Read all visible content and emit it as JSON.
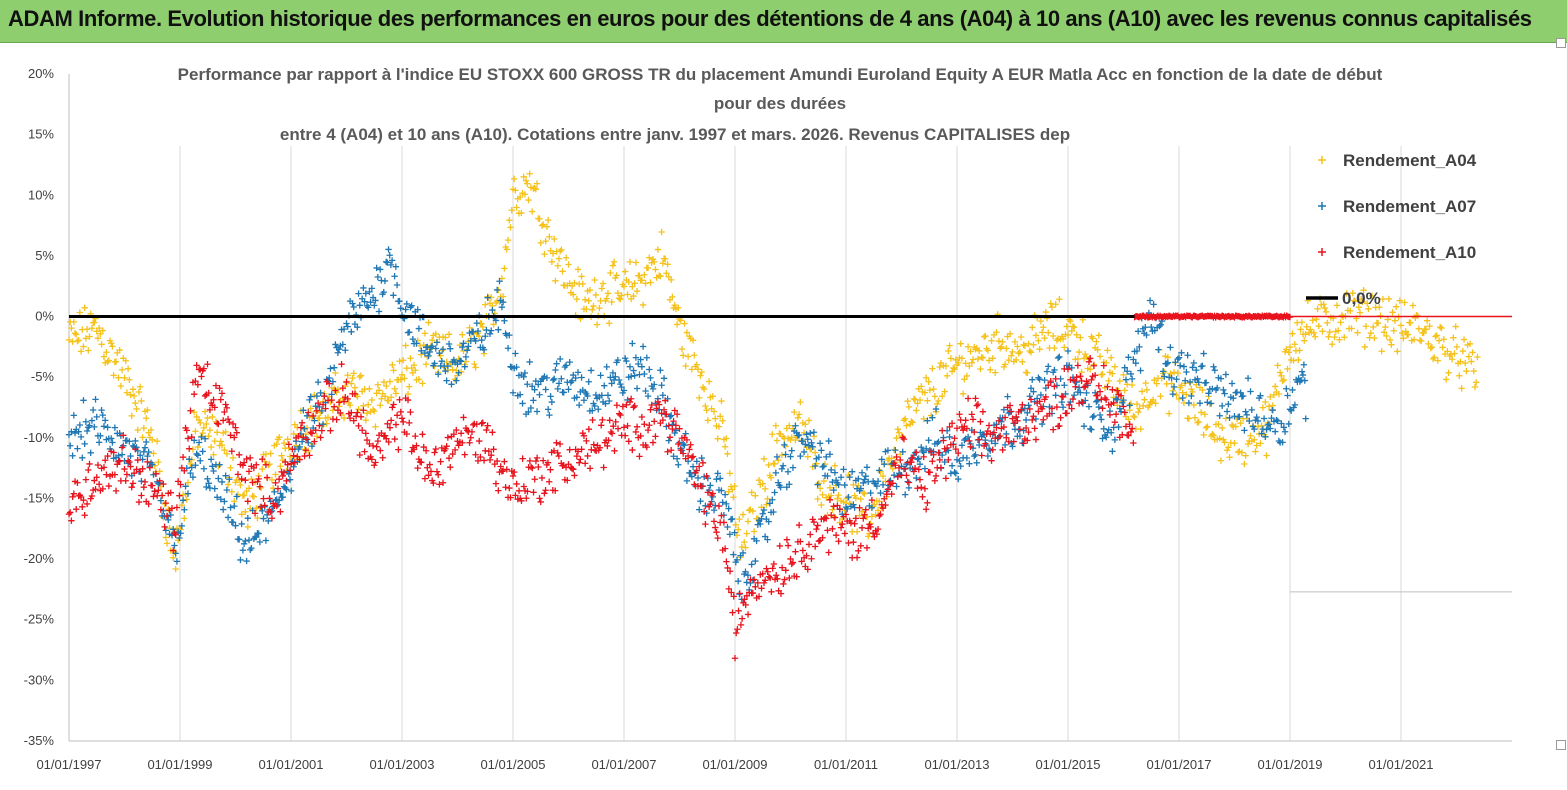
{
  "banner": {
    "title": "ADAM Informe. Evolution historique des performances en euros pour des détentions de 4 ans (A04) à 10 ans (A10) avec les revenus connus capitalisés"
  },
  "colors": {
    "banner": "#8fce6f",
    "A04": "#f5c21b",
    "A07": "#1f77b4",
    "A10": "#e8131d",
    "zero_line": "#000000",
    "grid": "#d9d9d9"
  },
  "chart_data": {
    "type": "scatter",
    "title_lines": [
      "Performance par rapport à l'indice EU STOXX 600 GROSS TR  du placement  Amundi Euroland Equity A EUR Matla Acc en fonction de la date de début",
      "pour des durées",
      "entre 4 (A04) et 10 ans (A10). Cotations entre janv. 1997 et mars. 2026. Revenus CAPITALISES dep"
    ],
    "x_range": [
      1997.0,
      2023.0
    ],
    "ylim": [
      -35,
      20
    ],
    "y_ticks": [
      20,
      15,
      10,
      5,
      0,
      -5,
      -10,
      -15,
      -20,
      -25,
      -30,
      -35
    ],
    "y_tick_labels": [
      "20%",
      "15%",
      "10%",
      "5%",
      "0%",
      "-5%",
      "-10%",
      "-15%",
      "-20%",
      "-25%",
      "-30%",
      "-35%"
    ],
    "x_ticks": [
      1997,
      1999,
      2001,
      2003,
      2005,
      2007,
      2009,
      2011,
      2013,
      2015,
      2017,
      2019,
      2021
    ],
    "x_tick_labels": [
      "01/01/1997",
      "01/01/1999",
      "01/01/2001",
      "01/01/2003",
      "01/01/2005",
      "01/01/2007",
      "01/01/2009",
      "01/01/2011",
      "01/01/2013",
      "01/01/2015",
      "01/01/2017",
      "01/01/2019",
      "01/01/2021"
    ],
    "legend": [
      {
        "name": "Rendement_A04",
        "marker": "+",
        "series": "A04"
      },
      {
        "name": "Rendement_A07",
        "marker": "+",
        "series": "A07"
      },
      {
        "name": "Rendement_A10",
        "marker": "+",
        "series": "A10"
      },
      {
        "name": "0,0%",
        "marker": "line",
        "series": "zero"
      }
    ],
    "zero_line": {
      "value": 0,
      "x": [
        1997.0,
        2016.2
      ]
    },
    "series": [
      {
        "name": "Rendement_A04",
        "key": "A04",
        "x": [
          1997.0,
          1997.5,
          1998.0,
          1998.5,
          1998.9,
          1999.3,
          1999.8,
          2000.2,
          2000.7,
          2001.2,
          2001.6,
          2002.0,
          2002.5,
          2003.0,
          2003.5,
          2004.0,
          2004.5,
          2004.8,
          2005.0,
          2005.3,
          2005.7,
          2006.0,
          2006.3,
          2006.6,
          2007.0,
          2007.3,
          2007.7,
          2008.0,
          2008.4,
          2008.8,
          2009.1,
          2009.5,
          2009.8,
          2010.2,
          2010.6,
          2011.0,
          2011.4,
          2011.8,
          2012.2,
          2012.6,
          2013.0,
          2013.4,
          2013.8,
          2014.2,
          2014.6,
          2015.0,
          2015.4,
          2015.8,
          2016.2,
          2016.6,
          2017.0,
          2017.4,
          2017.8,
          2018.2,
          2018.6,
          2019.0,
          2019.3,
          2020.0,
          2020.5,
          2021.0,
          2021.3,
          2021.6,
          2021.9,
          2022.2,
          2022.4
        ],
        "y": [
          -2,
          -1,
          -5,
          -10,
          -20,
          -9,
          -11,
          -16,
          -12,
          -9,
          -8,
          -6,
          -7,
          -5,
          -3,
          -4,
          -1,
          3,
          10,
          11,
          6,
          3,
          1,
          2,
          2,
          3,
          5,
          -1,
          -5,
          -10,
          -19,
          -14,
          -10,
          -9,
          -14,
          -15,
          -17,
          -12,
          -8,
          -6,
          -4,
          -3,
          -2,
          -3,
          -1,
          -1,
          -3,
          -5,
          -8,
          -5,
          -6,
          -8,
          -10,
          -10,
          -9,
          -2,
          -1,
          0,
          0,
          -1,
          -1,
          -2,
          -3,
          -4,
          -5
        ],
        "spread": 1.6
      },
      {
        "name": "Rendement_A07",
        "key": "A07",
        "x": [
          1997.0,
          1997.5,
          1998.0,
          1998.5,
          1998.9,
          1999.3,
          1999.8,
          2000.2,
          2000.7,
          2001.2,
          2001.6,
          2002.0,
          2002.5,
          2002.8,
          2003.0,
          2003.5,
          2004.0,
          2004.5,
          2004.8,
          2005.0,
          2005.3,
          2005.7,
          2006.0,
          2006.3,
          2006.6,
          2007.0,
          2007.3,
          2007.7,
          2008.0,
          2008.4,
          2008.8,
          2009.1,
          2009.5,
          2009.8,
          2010.2,
          2010.6,
          2011.0,
          2011.4,
          2011.8,
          2012.2,
          2012.6,
          2013.0,
          2013.4,
          2013.8,
          2014.2,
          2014.6,
          2015.0,
          2015.4,
          2015.8,
          2016.2,
          2016.5,
          2016.8,
          2017.2,
          2017.6,
          2018.0,
          2018.4,
          2018.8,
          2019.2,
          2019.3
        ],
        "y": [
          -10,
          -9,
          -11,
          -13,
          -19,
          -11,
          -15,
          -19,
          -16,
          -10,
          -7,
          -1,
          2,
          5,
          1,
          -3,
          -4,
          -1,
          1,
          -4,
          -6,
          -6,
          -5,
          -6,
          -6,
          -5,
          -4,
          -7,
          -11,
          -14,
          -15,
          -22,
          -18,
          -13,
          -10,
          -12,
          -15,
          -14,
          -13,
          -12,
          -10,
          -12,
          -10,
          -9,
          -8,
          -6,
          -5,
          -8,
          -9,
          -4,
          1,
          -4,
          -5,
          -6,
          -7,
          -8,
          -9,
          -5,
          -6
        ],
        "spread": 1.6
      },
      {
        "name": "Rendement_A10",
        "key": "A10",
        "x": [
          1997.0,
          1997.5,
          1998.0,
          1998.5,
          1998.9,
          1999.3,
          1999.8,
          2000.2,
          2000.7,
          2001.2,
          2001.6,
          2002.0,
          2002.5,
          2003.0,
          2003.5,
          2004.0,
          2004.5,
          2004.8,
          2005.0,
          2005.5,
          2006.0,
          2006.3,
          2006.7,
          2007.0,
          2007.3,
          2007.7,
          2008.0,
          2008.4,
          2008.8,
          2009.0,
          2009.3,
          2009.7,
          2010.0,
          2010.4,
          2010.8,
          2011.2,
          2011.6,
          2012.0,
          2012.4,
          2012.8,
          2013.2,
          2013.6,
          2014.0,
          2014.4,
          2014.8,
          2015.2,
          2015.6,
          2016.0,
          2016.2
        ],
        "y": [
          -16,
          -13,
          -12,
          -14,
          -17,
          -5,
          -8,
          -13,
          -15,
          -10,
          -8,
          -6,
          -12,
          -8,
          -13,
          -10,
          -10,
          -13,
          -14,
          -13,
          -12,
          -11,
          -10,
          -9,
          -9,
          -8,
          -10,
          -14,
          -18,
          -26,
          -22,
          -21,
          -20,
          -18,
          -17,
          -18,
          -16,
          -12,
          -14,
          -11,
          -9,
          -10,
          -9,
          -8,
          -7,
          -5,
          -6,
          -8,
          -10
        ],
        "spread": 1.6
      }
    ],
    "a10_flat_segment": {
      "x": [
        2016.2,
        2019.0
      ],
      "y": 0
    }
  }
}
